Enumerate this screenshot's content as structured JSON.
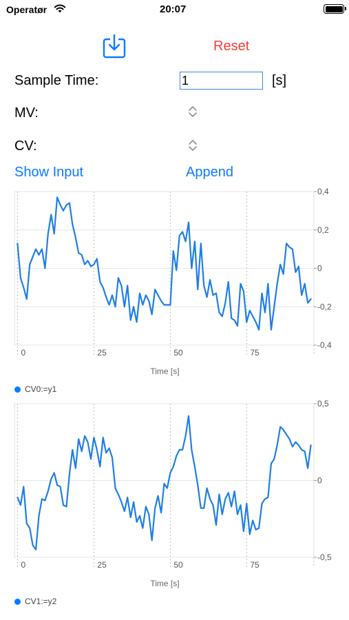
{
  "status_bar": {
    "carrier": "Operatør",
    "time": "20:07"
  },
  "toolbar": {
    "download_icon": "download-icon",
    "reset_label": "Reset"
  },
  "form": {
    "sample_time_label": "Sample Time:",
    "sample_time_value": "1",
    "sample_time_unit": "[s]",
    "mv_label": "MV:",
    "cv_label": "CV:"
  },
  "actions": {
    "show_input_label": "Show Input",
    "append_label": "Append"
  },
  "colors": {
    "accent": "#0a7aff",
    "reset": "#ff3b30",
    "series": "#1e7ee6"
  },
  "chart_data": [
    {
      "type": "line",
      "xlabel": "Time [s]",
      "ylabel": "",
      "xlim": [
        -1,
        97
      ],
      "ylim": [
        -0.4,
        0.4
      ],
      "xticks": [
        0,
        25,
        50,
        75
      ],
      "xtick_labels": [
        "0",
        "25",
        "50",
        "75"
      ],
      "yticks": [
        0.4,
        0.2,
        0,
        -0.2,
        -0.4
      ],
      "ytick_labels": [
        "0,4",
        "0,2",
        "0",
        "-0,2",
        "-0,4"
      ],
      "grid": true,
      "legend": "bottom-left",
      "series": [
        {
          "name": "CV0:=y1",
          "x": [
            0,
            1,
            2,
            3,
            4,
            5,
            6,
            7,
            8,
            9,
            10,
            11,
            12,
            13,
            14,
            15,
            16,
            17,
            18,
            19,
            20,
            21,
            22,
            23,
            24,
            25,
            26,
            27,
            28,
            29,
            30,
            31,
            32,
            33,
            34,
            35,
            36,
            37,
            38,
            39,
            40,
            41,
            42,
            43,
            44,
            45,
            46,
            47,
            48,
            49,
            50,
            51,
            52,
            53,
            54,
            55,
            56,
            57,
            58,
            59,
            60,
            61,
            62,
            63,
            64,
            65,
            66,
            67,
            68,
            69,
            70,
            71,
            72,
            73,
            74,
            75,
            76,
            77,
            78,
            79,
            80,
            81,
            82,
            83,
            84,
            85,
            86,
            87,
            88,
            89,
            90,
            91,
            92,
            93,
            94,
            95,
            96
          ],
          "values": [
            0.13,
            -0.05,
            -0.1,
            -0.16,
            0.02,
            0.06,
            0.1,
            0.07,
            0.1,
            0.0,
            0.18,
            0.28,
            0.18,
            0.37,
            0.33,
            0.3,
            0.33,
            0.34,
            0.23,
            0.16,
            0.08,
            0.07,
            0.02,
            0.04,
            0.01,
            0.02,
            0.05,
            -0.07,
            -0.1,
            -0.15,
            -0.19,
            -0.14,
            -0.2,
            -0.05,
            -0.09,
            -0.2,
            -0.09,
            -0.27,
            -0.2,
            -0.28,
            -0.13,
            -0.19,
            -0.14,
            -0.17,
            -0.24,
            -0.11,
            -0.14,
            -0.17,
            -0.19,
            -0.19,
            -0.19,
            0.09,
            -0.01,
            0.17,
            0.19,
            0.14,
            0.24,
            0.0,
            0.14,
            -0.11,
            0.13,
            -0.09,
            -0.15,
            -0.06,
            -0.14,
            -0.13,
            -0.23,
            -0.25,
            -0.18,
            -0.07,
            -0.26,
            -0.27,
            -0.3,
            -0.08,
            -0.12,
            -0.28,
            -0.22,
            -0.25,
            -0.28,
            -0.32,
            -0.13,
            -0.23,
            -0.08,
            -0.32,
            -0.2,
            -0.08,
            0.02,
            -0.03,
            0.13,
            0.11,
            0.1,
            -0.02,
            0.01,
            -0.14,
            -0.08,
            -0.18,
            -0.16
          ]
        }
      ]
    },
    {
      "type": "line",
      "xlabel": "Time [s]",
      "ylabel": "",
      "xlim": [
        -1,
        97
      ],
      "ylim": [
        -0.5,
        0.5
      ],
      "xticks": [
        0,
        25,
        50,
        75
      ],
      "xtick_labels": [
        "0",
        "25",
        "50",
        "75"
      ],
      "yticks": [
        0.5,
        0,
        -0.5
      ],
      "ytick_labels": [
        "0,5",
        "0",
        "-0,5"
      ],
      "grid": true,
      "legend": "bottom-left",
      "series": [
        {
          "name": "CV1:=y2",
          "x": [
            0,
            1,
            2,
            3,
            4,
            5,
            6,
            7,
            8,
            9,
            10,
            11,
            12,
            13,
            14,
            15,
            16,
            17,
            18,
            19,
            20,
            21,
            22,
            23,
            24,
            25,
            26,
            27,
            28,
            29,
            30,
            31,
            32,
            33,
            34,
            35,
            36,
            37,
            38,
            39,
            40,
            41,
            42,
            43,
            44,
            45,
            46,
            47,
            48,
            49,
            50,
            51,
            52,
            53,
            54,
            55,
            56,
            57,
            58,
            59,
            60,
            61,
            62,
            63,
            64,
            65,
            66,
            67,
            68,
            69,
            70,
            71,
            72,
            73,
            74,
            75,
            76,
            77,
            78,
            79,
            80,
            81,
            82,
            83,
            84,
            85,
            86,
            87,
            88,
            89,
            90,
            91,
            92,
            93,
            94,
            95,
            96
          ],
          "values": [
            -0.11,
            -0.16,
            -0.04,
            -0.28,
            -0.31,
            -0.42,
            -0.45,
            -0.23,
            -0.12,
            -0.13,
            -0.07,
            0.01,
            0.05,
            -0.03,
            -0.04,
            -0.16,
            -0.17,
            0.04,
            0.2,
            0.08,
            0.27,
            0.19,
            0.29,
            0.25,
            0.14,
            0.28,
            0.2,
            0.09,
            0.28,
            0.18,
            0.21,
            0.15,
            -0.05,
            -0.09,
            -0.14,
            -0.2,
            -0.11,
            -0.24,
            -0.14,
            -0.27,
            -0.23,
            -0.31,
            -0.17,
            -0.22,
            -0.39,
            -0.18,
            -0.1,
            -0.21,
            -0.02,
            -0.05,
            0.05,
            0.09,
            0.16,
            0.2,
            0.2,
            0.29,
            0.42,
            0.2,
            0.09,
            -0.03,
            -0.18,
            -0.18,
            -0.05,
            -0.12,
            -0.16,
            -0.29,
            -0.09,
            -0.22,
            -0.12,
            -0.08,
            -0.17,
            -0.07,
            -0.22,
            -0.16,
            -0.33,
            -0.15,
            -0.35,
            -0.26,
            -0.32,
            -0.31,
            -0.15,
            -0.12,
            -0.11,
            0.11,
            0.14,
            0.23,
            0.35,
            0.33,
            0.3,
            0.27,
            0.22,
            0.25,
            0.23,
            0.2,
            0.19,
            0.08,
            0.23
          ]
        }
      ]
    }
  ]
}
